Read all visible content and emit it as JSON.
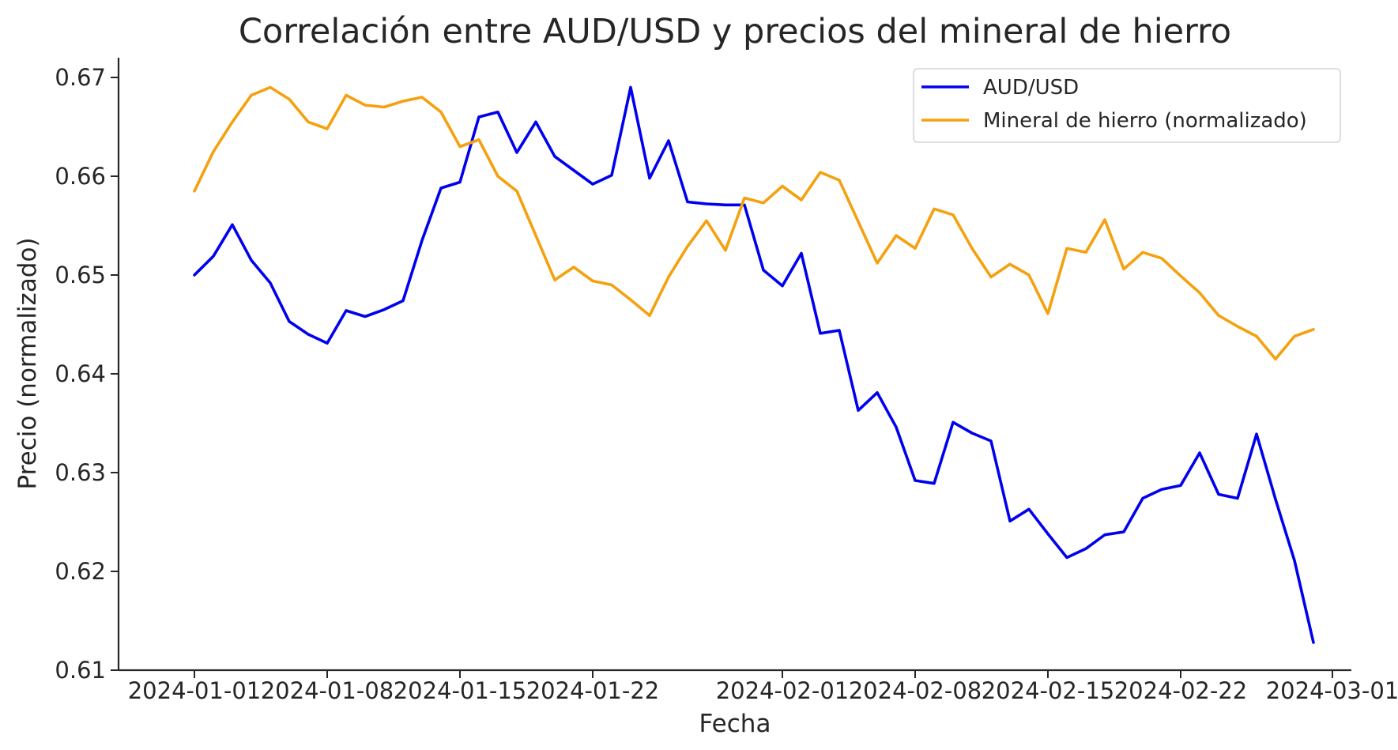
{
  "chart_data": {
    "type": "line",
    "title": "Correlación entre AUD/USD y precios del mineral de hierro",
    "xlabel": "Fecha",
    "ylabel": "Precio (normalizado)",
    "ylim": [
      0.61,
      0.672
    ],
    "xlim": [
      "2023-12-28",
      "2024-03-02"
    ],
    "yticks": [
      0.61,
      0.62,
      0.63,
      0.64,
      0.65,
      0.66,
      0.67
    ],
    "ytick_labels": [
      "0.61",
      "0.62",
      "0.63",
      "0.64",
      "0.65",
      "0.66",
      "0.67"
    ],
    "xticks": [
      "2024-01-01",
      "2024-01-08",
      "2024-01-15",
      "2024-01-22",
      "2024-02-01",
      "2024-02-08",
      "2024-02-15",
      "2024-02-22",
      "2024-03-01"
    ],
    "xtick_labels": [
      "2024-01-01",
      "2024-01-08",
      "2024-01-15",
      "2024-01-22",
      "2024-02-01",
      "2024-02-08",
      "2024-02-15",
      "2024-02-22",
      "2024-03-01"
    ],
    "grid": false,
    "legend_position": "top-right",
    "x": [
      "2024-01-01",
      "2024-01-02",
      "2024-01-03",
      "2024-01-04",
      "2024-01-05",
      "2024-01-06",
      "2024-01-07",
      "2024-01-08",
      "2024-01-09",
      "2024-01-10",
      "2024-01-11",
      "2024-01-12",
      "2024-01-13",
      "2024-01-14",
      "2024-01-15",
      "2024-01-16",
      "2024-01-17",
      "2024-01-18",
      "2024-01-19",
      "2024-01-20",
      "2024-01-21",
      "2024-01-22",
      "2024-01-23",
      "2024-01-24",
      "2024-01-25",
      "2024-01-26",
      "2024-01-27",
      "2024-01-28",
      "2024-01-29",
      "2024-01-30",
      "2024-01-31",
      "2024-02-01",
      "2024-02-02",
      "2024-02-03",
      "2024-02-04",
      "2024-02-05",
      "2024-02-06",
      "2024-02-07",
      "2024-02-08",
      "2024-02-09",
      "2024-02-10",
      "2024-02-11",
      "2024-02-12",
      "2024-02-13",
      "2024-02-14",
      "2024-02-15",
      "2024-02-16",
      "2024-02-17",
      "2024-02-18",
      "2024-02-19",
      "2024-02-20",
      "2024-02-21",
      "2024-02-22",
      "2024-02-23",
      "2024-02-24",
      "2024-02-25",
      "2024-02-26",
      "2024-02-27",
      "2024-02-28",
      "2024-02-29"
    ],
    "series": [
      {
        "name": "AUD/USD",
        "color": "#0000ee",
        "values": [
          0.65,
          0.6519,
          0.6551,
          0.6515,
          0.6492,
          0.6453,
          0.644,
          0.6431,
          0.6464,
          0.6458,
          0.6465,
          0.6474,
          0.6535,
          0.6588,
          0.6594,
          0.666,
          0.6665,
          0.6624,
          0.6655,
          0.662,
          0.6606,
          0.6592,
          0.6601,
          0.669,
          0.6598,
          0.6636,
          0.6574,
          0.6572,
          0.6571,
          0.6571,
          0.6505,
          0.6489,
          0.6522,
          0.6441,
          0.6444,
          0.6363,
          0.6381,
          0.6346,
          0.6292,
          0.6289,
          0.6351,
          0.634,
          0.6332,
          0.6251,
          0.6263,
          0.6238,
          0.6214,
          0.6223,
          0.6237,
          0.624,
          0.6274,
          0.6283,
          0.6287,
          0.632,
          0.6278,
          0.6274,
          0.6339,
          0.6273,
          0.6211,
          0.6128
        ]
      },
      {
        "name": "Mineral de hierro (normalizado)",
        "color": "#f5a10f",
        "values": [
          0.6585,
          0.6625,
          0.6655,
          0.6682,
          0.669,
          0.6678,
          0.6655,
          0.6648,
          0.6682,
          0.6672,
          0.667,
          0.6676,
          0.668,
          0.6665,
          0.663,
          0.6637,
          0.66,
          0.6585,
          0.654,
          0.6495,
          0.6508,
          0.6494,
          0.649,
          0.6475,
          0.6459,
          0.6498,
          0.6529,
          0.6555,
          0.6525,
          0.6578,
          0.6573,
          0.659,
          0.6576,
          0.6604,
          0.6596,
          0.6554,
          0.6512,
          0.654,
          0.6527,
          0.6567,
          0.6561,
          0.6527,
          0.6498,
          0.6511,
          0.65,
          0.6461,
          0.6527,
          0.6523,
          0.6556,
          0.6506,
          0.6523,
          0.6517,
          0.6499,
          0.6482,
          0.6459,
          0.6448,
          0.6438,
          0.6415,
          0.6438,
          0.6445
        ]
      }
    ]
  }
}
